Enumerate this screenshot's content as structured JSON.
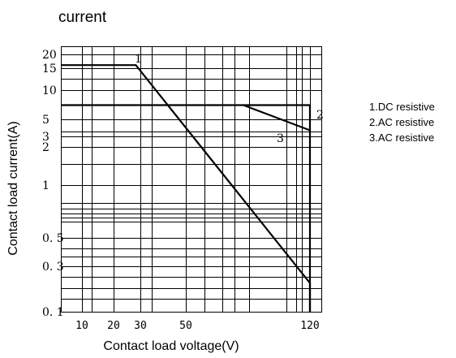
{
  "chart_data": {
    "type": "line",
    "title": "current",
    "xlabel": "Contact load voltage(V)",
    "ylabel": "Contact load current(A)",
    "x_tick_labels": [
      {
        "value": 10,
        "label": "10"
      },
      {
        "value": 20,
        "label": "20"
      },
      {
        "value": 30,
        "label": "30"
      },
      {
        "value": 50,
        "label": "50"
      },
      {
        "value": 120,
        "label": "120"
      }
    ],
    "y_tick_labels": [
      {
        "value": 20,
        "label": "20"
      },
      {
        "value": 15,
        "label": "15"
      },
      {
        "value": 10,
        "label": "10"
      },
      {
        "value": 5,
        "label": "5"
      },
      {
        "value": 3,
        "label": "3"
      },
      {
        "value": 2,
        "label": "2"
      },
      {
        "value": 1,
        "label": "1"
      },
      {
        "value": 0.5,
        "label": "0. 5"
      },
      {
        "value": 0.3,
        "label": "0. 3"
      },
      {
        "value": 0.1,
        "label": "0. 1"
      }
    ],
    "grid": true,
    "legend_position": "right",
    "legend": [
      "1.DC resistive",
      "2.AC resistive",
      "3.AC resistive"
    ],
    "series": [
      {
        "label": "1",
        "points": [
          [
            6,
            16
          ],
          [
            28,
            16
          ],
          [
            120,
            0.2
          ],
          [
            120,
            0.1
          ]
        ]
      },
      {
        "label": "2",
        "points": [
          [
            6,
            7
          ],
          [
            120,
            7
          ],
          [
            120,
            0.1
          ]
        ]
      },
      {
        "label": "3",
        "points": [
          [
            75,
            7
          ],
          [
            120,
            3.6
          ]
        ]
      }
    ]
  }
}
